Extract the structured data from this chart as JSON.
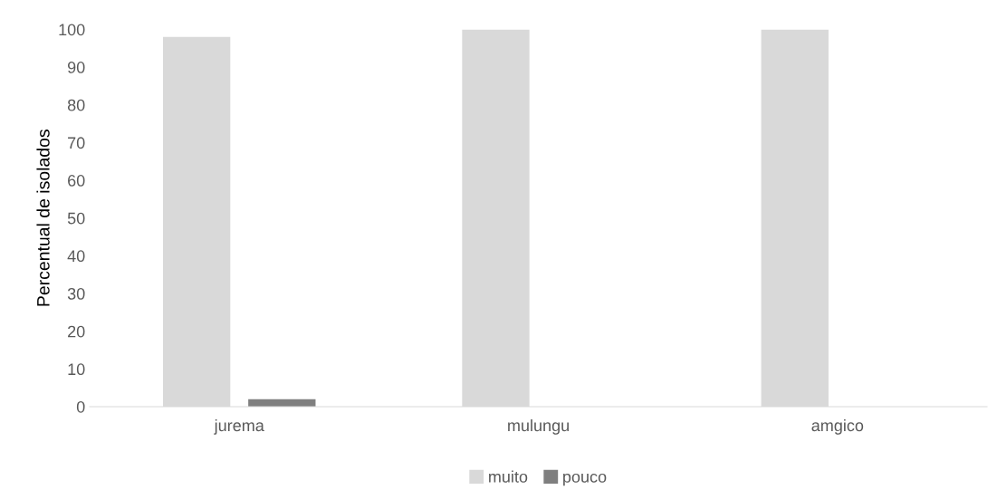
{
  "chart_data": {
    "type": "bar",
    "ylabel": "Percentual de isolados",
    "categories": [
      "jurema",
      "mulungu",
      "amgico"
    ],
    "series": [
      {
        "name": "muito",
        "color": "#d9d9d9",
        "values": [
          98,
          100,
          100
        ]
      },
      {
        "name": "pouco",
        "color": "#7f7f7f",
        "values": [
          2,
          0,
          0
        ]
      }
    ],
    "ylim": [
      0,
      100
    ],
    "yticks": [
      0,
      10,
      20,
      30,
      40,
      50,
      60,
      70,
      80,
      90,
      100
    ],
    "grid": false,
    "legend": "bottom"
  }
}
